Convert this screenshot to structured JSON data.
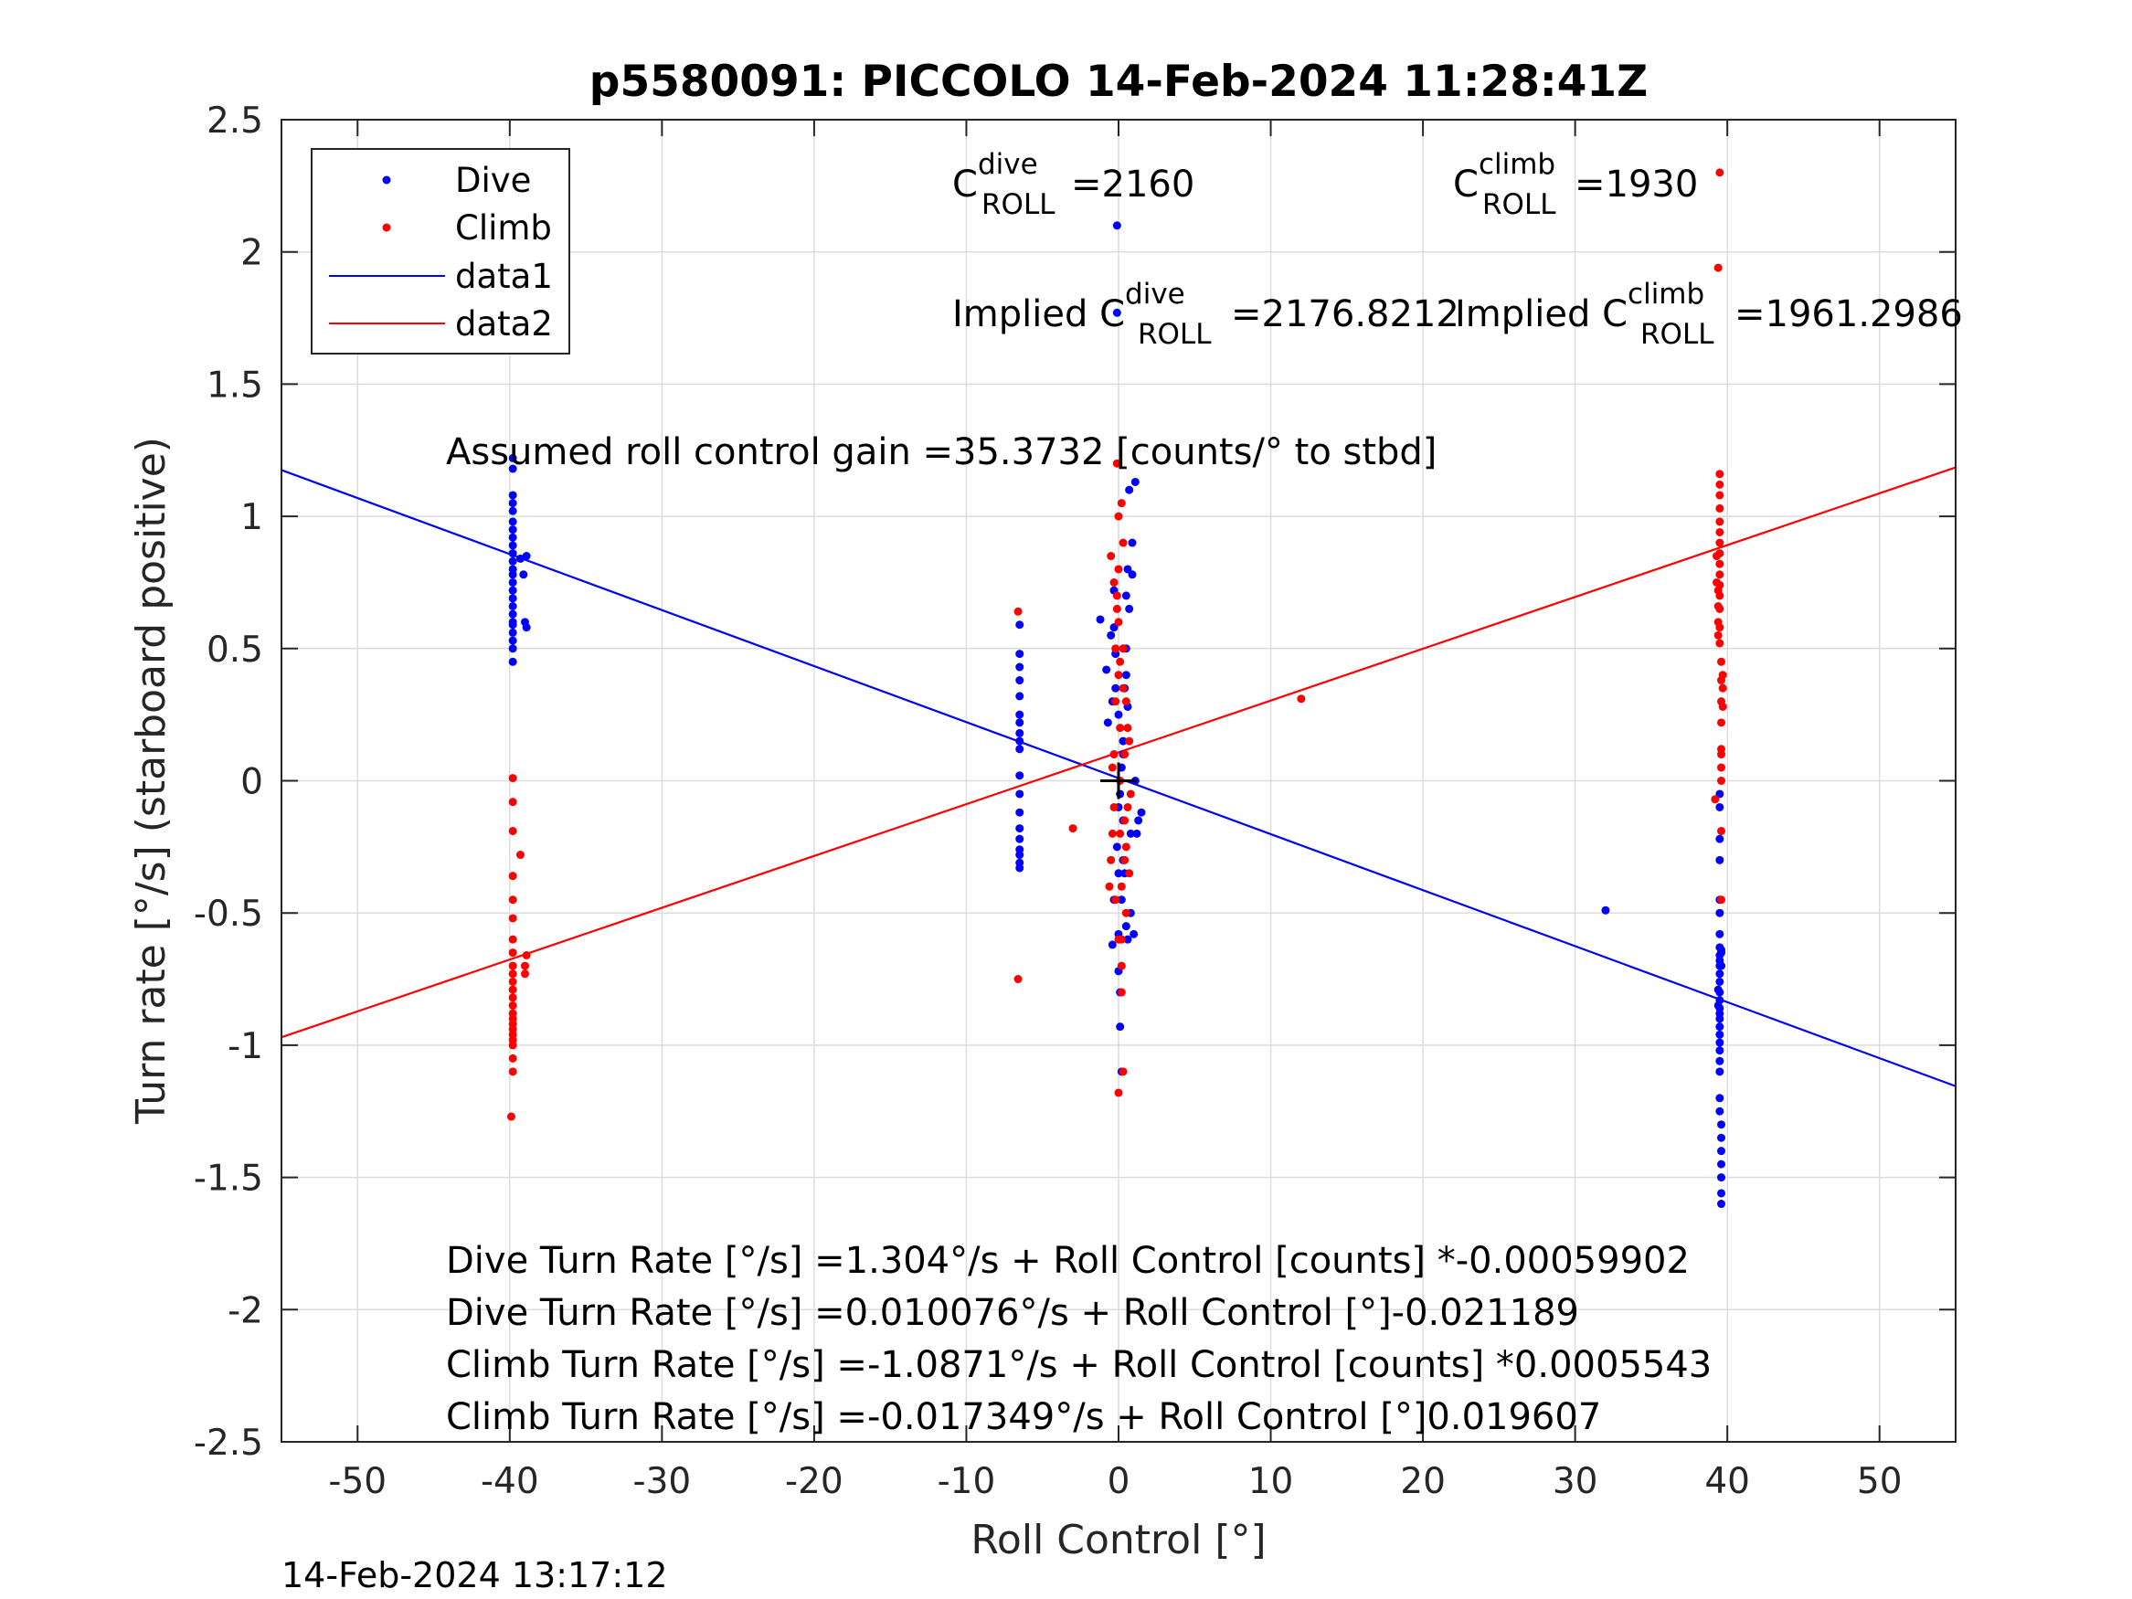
{
  "chart_data": {
    "type": "scatter",
    "title": "p5580091: PICCOLO 14-Feb-2024 11:28:41Z",
    "xlabel": "Roll Control [°]",
    "ylabel": "Turn rate [°/s] (starboard positive)",
    "xlim": [
      -55,
      55
    ],
    "ylim": [
      -2.5,
      2.5
    ],
    "xticks": [
      "-50",
      "-40",
      "-30",
      "-20",
      "-10",
      "0",
      "10",
      "20",
      "30",
      "40",
      "50"
    ],
    "yticks": [
      "2.5",
      "2",
      "1.5",
      "1",
      "0.5",
      "0",
      "-0.5",
      "-1",
      "-1.5",
      "-2",
      "-2.5"
    ],
    "grid": true,
    "legend_location": "top-left",
    "legend": [
      "Dive",
      "Climb",
      "data1",
      "data2"
    ],
    "series": [
      {
        "name": "Dive",
        "kind": "points",
        "color": "#0000ff",
        "x": [
          -39.8,
          -39.8,
          -39.8,
          -39.8,
          -39.8,
          -39.8,
          -39.8,
          -39.8,
          -39.8,
          -39.8,
          -39.8,
          -39.8,
          -39.8,
          -39.8,
          -39.8,
          -39.8,
          -39.8,
          -39.8,
          -39.8,
          -39.8,
          -39.8,
          -39.8,
          -39.8,
          -39.8,
          -39.3,
          -39.1,
          -39.0,
          -38.9,
          -38.9,
          -6.5,
          -6.5,
          -6.5,
          -6.5,
          -6.5,
          -6.5,
          -6.5,
          -6.5,
          -6.5,
          -6.5,
          -6.5,
          -6.5,
          -6.5,
          -6.5,
          -6.5,
          -6.5,
          -6.5,
          -6.5,
          -6.5,
          -1.2,
          -0.8,
          -0.7,
          -0.5,
          -0.4,
          -0.3,
          -0.3,
          -0.2,
          -0.2,
          -0.1,
          -0.1,
          0,
          0,
          0,
          0,
          0,
          0.1,
          0.1,
          0.2,
          0.2,
          0.3,
          0.3,
          0.3,
          0.4,
          0.5,
          0.5,
          0.5,
          0.6,
          0.6,
          0.7,
          0.8,
          0.9,
          1.0,
          1.1,
          1.2,
          1.3,
          1.5,
          1.1,
          0.9,
          0.7,
          0.5,
          0.3,
          0.1,
          -0.1,
          -0.3,
          -0.4,
          0.2,
          0.4,
          0.6,
          0.8,
          32.0,
          39.4,
          39.4,
          39.5,
          39.5,
          39.5,
          39.5,
          39.5,
          39.5,
          39.5,
          39.5,
          39.5,
          39.5,
          39.5,
          39.5,
          39.5,
          39.5,
          39.5,
          39.5,
          39.5,
          39.5,
          39.5,
          39.5,
          39.5,
          39.5,
          39.5,
          39.5,
          39.5,
          39.5,
          39.6,
          39.6,
          39.6,
          39.6,
          39.6,
          39.6,
          39.6,
          39.6,
          39.6,
          39.6
        ],
        "y": [
          1.22,
          1.18,
          1.08,
          1.05,
          1.02,
          0.98,
          0.95,
          0.92,
          0.89,
          0.86,
          0.83,
          0.8,
          0.78,
          0.75,
          0.72,
          0.69,
          0.66,
          0.63,
          0.6,
          0.56,
          0.53,
          0.5,
          0.45,
          0.59,
          0.84,
          0.78,
          0.6,
          0.58,
          0.85,
          0.59,
          0.48,
          0.43,
          0.38,
          0.32,
          0.25,
          0.22,
          0.18,
          0.15,
          0.12,
          0.02,
          -0.05,
          -0.12,
          -0.18,
          -0.22,
          -0.26,
          -0.28,
          -0.31,
          -0.33,
          0.61,
          0.42,
          0.22,
          0.55,
          0.3,
          0.72,
          0.58,
          0.48,
          0.35,
          2.1,
          1.77,
          0.25,
          -0.1,
          -0.35,
          -0.58,
          -0.72,
          -0.8,
          -0.93,
          -1.1,
          -0.45,
          -0.3,
          -0.15,
          0.1,
          0.35,
          -0.55,
          0.5,
          0.7,
          -0.6,
          0.8,
          1.1,
          -0.2,
          0.78,
          -0.58,
          0.0,
          -0.2,
          -0.15,
          -0.12,
          1.13,
          0.9,
          0.65,
          0.4,
          0.15,
          -0.05,
          -0.25,
          -0.45,
          -0.62,
          0.05,
          -0.35,
          0.28,
          -0.5,
          -0.49,
          -0.79,
          -0.85,
          -0.05,
          -0.1,
          -0.22,
          -0.3,
          -0.45,
          -0.5,
          -0.58,
          -0.63,
          -0.66,
          -0.68,
          -0.7,
          -0.73,
          -0.76,
          -0.8,
          -0.83,
          -0.86,
          -0.88,
          -0.9,
          -0.93,
          -0.96,
          -0.99,
          -1.02,
          -1.06,
          -1.1,
          -1.2,
          -1.25,
          -1.3,
          -1.35,
          -1.4,
          -1.45,
          -1.5,
          -1.56,
          -1.6,
          -0.64,
          -0.7,
          -0.65
        ]
      },
      {
        "name": "Climb",
        "kind": "points",
        "color": "#ff0000",
        "x": [
          -39.9,
          -39.8,
          -39.8,
          -39.8,
          -39.8,
          -39.8,
          -39.8,
          -39.8,
          -39.8,
          -39.8,
          -39.8,
          -39.8,
          -39.8,
          -39.8,
          -39.8,
          -39.8,
          -39.8,
          -39.8,
          -39.8,
          -39.8,
          -39.8,
          -39.8,
          -39.8,
          -39.8,
          -39.3,
          -39.0,
          -39.0,
          -38.9,
          -6.6,
          -6.6,
          -3.0,
          12.0,
          -0.6,
          -0.5,
          -0.4,
          -0.3,
          -0.3,
          -0.2,
          -0.2,
          -0.1,
          -0.1,
          0,
          0,
          0,
          0,
          0.1,
          0.1,
          0.1,
          0.2,
          0.2,
          0.2,
          0.3,
          0.3,
          0.3,
          0.4,
          0.4,
          0.5,
          0.5,
          0.6,
          0.6,
          0.7,
          0.7,
          0.8,
          -0.5,
          -0.3,
          -0.1,
          0.1,
          0.3,
          0.5,
          0,
          0.2,
          -0.2,
          0.4,
          -0.4,
          0.0,
          0.2,
          39.2,
          39.3,
          39.3,
          39.4,
          39.4,
          39.4,
          39.4,
          39.5,
          39.5,
          39.5,
          39.5,
          39.5,
          39.5,
          39.5,
          39.5,
          39.5,
          39.5,
          39.5,
          39.5,
          39.5,
          39.5,
          39.5,
          39.6,
          39.6,
          39.6,
          39.6,
          39.6,
          39.6,
          39.6,
          39.6,
          39.6,
          39.6,
          39.7,
          39.7,
          39.7,
          39.4,
          39.5
        ],
        "y": [
          -1.27,
          -1.1,
          -1.05,
          -1.0,
          -0.98,
          -0.96,
          -0.94,
          -0.92,
          -0.9,
          -0.88,
          -0.85,
          -0.82,
          -0.79,
          -0.76,
          -0.73,
          -0.7,
          -0.65,
          -0.6,
          -0.52,
          -0.45,
          -0.36,
          -0.19,
          -0.08,
          0.01,
          -0.28,
          -0.73,
          -0.7,
          -0.66,
          0.64,
          -0.75,
          -0.18,
          0.31,
          -0.4,
          -0.3,
          -0.2,
          -0.1,
          0.1,
          0.3,
          0.5,
          0.7,
          1.2,
          1.0,
          0.8,
          0.6,
          0.4,
          0.2,
          0.0,
          -0.2,
          -0.4,
          -0.6,
          -0.8,
          -1.1,
          0.9,
          0.5,
          0.1,
          -0.3,
          -0.5,
          0.3,
          -0.1,
          0.2,
          -0.35,
          0.15,
          -0.05,
          0.85,
          0.75,
          0.65,
          0.45,
          0.35,
          -0.25,
          -0.6,
          -0.7,
          -0.45,
          -0.15,
          0.05,
          -1.18,
          1.05,
          -0.07,
          0.85,
          0.75,
          0.72,
          0.66,
          0.6,
          0.55,
          1.16,
          1.12,
          1.08,
          1.03,
          0.98,
          0.94,
          0.9,
          0.86,
          0.82,
          0.78,
          0.74,
          0.7,
          0.65,
          0.58,
          0.52,
          0.45,
          0.38,
          0.3,
          0.22,
          0.1,
          0.0,
          -0.19,
          -0.45,
          0.05,
          0.12,
          0.28,
          0.35,
          0.4,
          1.94,
          2.3
        ]
      },
      {
        "name": "data1",
        "kind": "line",
        "color": "#0000ff",
        "x": [
          -55,
          55
        ],
        "y": [
          1.175,
          -1.155
        ]
      },
      {
        "name": "data2",
        "kind": "line",
        "color": "#ff0000",
        "x": [
          -55,
          55
        ],
        "y": [
          -0.97,
          1.185
        ]
      },
      {
        "name": "origin-marker",
        "kind": "cross",
        "color": "#000000",
        "x": [
          0
        ],
        "y": [
          0
        ]
      }
    ],
    "annotations": {
      "c_dive": {
        "base": "C",
        "sup": "dive",
        "sub": "ROLL",
        "value": "=2160"
      },
      "c_climb": {
        "base": "C",
        "sup": "climb",
        "sub": "ROLL",
        "value": "=1930"
      },
      "implied_dive": {
        "base": "Implied C",
        "sup": "dive",
        "sub": "ROLL",
        "value": "=2176.8212"
      },
      "implied_climb": {
        "base": "Implied C",
        "sup": "climb",
        "sub": "ROLL",
        "value": "=1961.2986"
      },
      "gain": "Assumed roll control gain =35.3732 [counts/° to stbd]",
      "fit1": "Dive Turn Rate [°/s] =1.304°/s + Roll Control [counts] *-0.00059902",
      "fit2": "Dive Turn Rate [°/s] =0.010076°/s + Roll Control [°]-0.021189",
      "fit3": "Climb Turn Rate [°/s] =-1.0871°/s + Roll Control [counts] *0.0005543",
      "fit4": "Climb Turn Rate [°/s] =-0.017349°/s + Roll Control [°]0.019607"
    },
    "timestamp": "14-Feb-2024 13:17:12"
  }
}
